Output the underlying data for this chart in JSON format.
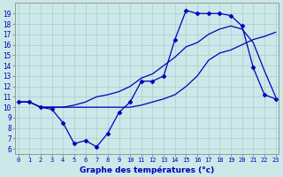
{
  "line_max": [
    10.5,
    10.5,
    10.0,
    9.8,
    8.5,
    6.5,
    6.8,
    6.2,
    7.5,
    9.5,
    10.5,
    12.5,
    12.5,
    13.0,
    16.5,
    19.3,
    19.0,
    19.0,
    19.0,
    18.8,
    17.8,
    13.8,
    11.2,
    10.8
  ],
  "line_mean": [
    10.5,
    10.5,
    10.0,
    10.0,
    10.0,
    10.2,
    10.5,
    11.0,
    11.2,
    11.5,
    12.0,
    12.8,
    13.2,
    14.0,
    14.8,
    15.8,
    16.2,
    17.0,
    17.5,
    17.8,
    17.5,
    16.2,
    13.5,
    11.0
  ],
  "line_min": [
    10.5,
    10.5,
    10.0,
    10.0,
    10.0,
    10.0,
    10.0,
    10.0,
    10.0,
    10.0,
    10.0,
    10.2,
    10.5,
    10.8,
    11.2,
    12.0,
    13.0,
    14.5,
    15.2,
    15.5,
    16.0,
    16.5,
    16.8,
    17.2
  ],
  "hours": [
    0,
    1,
    2,
    3,
    4,
    5,
    6,
    7,
    8,
    9,
    10,
    11,
    12,
    13,
    14,
    15,
    16,
    17,
    18,
    19,
    20,
    21,
    22,
    23
  ],
  "ylim": [
    5.5,
    20.0
  ],
  "yticks": [
    6,
    7,
    8,
    9,
    10,
    11,
    12,
    13,
    14,
    15,
    16,
    17,
    18,
    19
  ],
  "xlabel": "Graphe des températures (°c)",
  "line_color": "#0000bb",
  "bg_color": "#cce8e8",
  "plot_bg": "#cce8e8",
  "grid_color": "#aacccc",
  "marker": "D",
  "markersize": 2.5
}
